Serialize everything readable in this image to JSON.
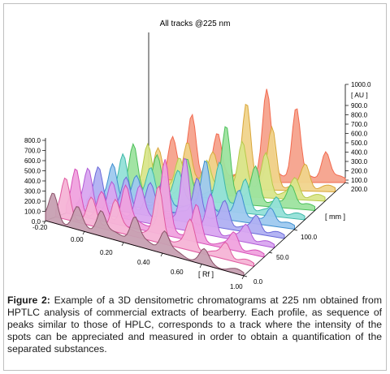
{
  "chart_data": {
    "type": "3d-densitogram",
    "title": "All tracks @225 nm",
    "left_axis": {
      "ticks": [
        "800.0",
        "700.0",
        "600.0",
        "500.0",
        "400.0",
        "300.0",
        "200.0",
        "100.0",
        "0.0"
      ]
    },
    "right_axis": {
      "unit": "[ AU ]",
      "ticks": [
        "1000.0",
        "900.0",
        "800.0",
        "700.0",
        "600.0",
        "500.0",
        "400.0",
        "300.0",
        "200.0",
        "100.0"
      ]
    },
    "rf_axis": {
      "label": "[ Rf ]",
      "ticks": [
        "-0.20",
        "0.00",
        "0.20",
        "0.40",
        "0.60",
        "1.00"
      ]
    },
    "mm_axis": {
      "label": "[ mm ]",
      "ticks": [
        "200.0",
        "100.0",
        "50.0",
        "0.0"
      ]
    },
    "series": [
      {
        "color": "#f26a4f",
        "fill": "#f6a28c",
        "peaks": [
          [
            0.12,
            0.45
          ],
          [
            0.22,
            0.65
          ],
          [
            0.35,
            0.4
          ],
          [
            0.6,
            0.9
          ],
          [
            0.75,
            0.75
          ],
          [
            0.9,
            0.3
          ]
        ]
      },
      {
        "color": "#d9a63a",
        "fill": "#f0d48c",
        "peaks": [
          [
            0.1,
            0.4
          ],
          [
            0.25,
            0.45
          ],
          [
            0.38,
            0.3
          ],
          [
            0.55,
            0.85
          ],
          [
            0.68,
            0.6
          ],
          [
            0.85,
            0.25
          ]
        ]
      },
      {
        "color": "#b7c94a",
        "fill": "#d9e68c",
        "peaks": [
          [
            0.1,
            0.5
          ],
          [
            0.26,
            0.35
          ],
          [
            0.4,
            0.3
          ],
          [
            0.58,
            0.55
          ],
          [
            0.7,
            0.45
          ],
          [
            0.85,
            0.2
          ]
        ]
      },
      {
        "color": "#4cbf5a",
        "fill": "#9de39f",
        "peaks": [
          [
            0.08,
            0.55
          ],
          [
            0.2,
            0.4
          ],
          [
            0.35,
            0.35
          ],
          [
            0.55,
            0.8
          ],
          [
            0.7,
            0.4
          ],
          [
            0.88,
            0.25
          ]
        ]
      },
      {
        "color": "#3fb8a8",
        "fill": "#94e0d8",
        "peaks": [
          [
            0.08,
            0.5
          ],
          [
            0.22,
            0.35
          ],
          [
            0.36,
            0.3
          ],
          [
            0.57,
            0.5
          ],
          [
            0.7,
            0.35
          ],
          [
            0.86,
            0.2
          ]
        ]
      },
      {
        "color": "#3f8fcf",
        "fill": "#9ec9ef",
        "peaks": [
          [
            0.08,
            0.45
          ],
          [
            0.2,
            0.3
          ],
          [
            0.34,
            0.3
          ],
          [
            0.55,
            0.6
          ],
          [
            0.72,
            0.35
          ],
          [
            0.88,
            0.2
          ]
        ]
      },
      {
        "color": "#6a6ad8",
        "fill": "#b0b0f2",
        "peaks": [
          [
            0.06,
            0.45
          ],
          [
            0.2,
            0.35
          ],
          [
            0.32,
            0.3
          ],
          [
            0.56,
            0.5
          ],
          [
            0.7,
            0.3
          ],
          [
            0.86,
            0.2
          ]
        ]
      },
      {
        "color": "#b05cd6",
        "fill": "#d9a6f0",
        "peaks": [
          [
            0.06,
            0.5
          ],
          [
            0.18,
            0.35
          ],
          [
            0.32,
            0.35
          ],
          [
            0.55,
            0.85
          ],
          [
            0.68,
            0.45
          ],
          [
            0.86,
            0.2
          ]
        ]
      },
      {
        "color": "#d64fb8",
        "fill": "#f0a2de",
        "peaks": [
          [
            0.05,
            0.55
          ],
          [
            0.18,
            0.3
          ],
          [
            0.3,
            0.45
          ],
          [
            0.5,
            0.85
          ],
          [
            0.66,
            0.4
          ],
          [
            0.85,
            0.2
          ]
        ]
      },
      {
        "color": "#e05aa0",
        "fill": "#f5b4d6",
        "peaks": [
          [
            0.05,
            0.5
          ],
          [
            0.18,
            0.3
          ],
          [
            0.3,
            0.35
          ],
          [
            0.52,
            0.65
          ],
          [
            0.68,
            0.35
          ],
          [
            0.86,
            0.2
          ]
        ]
      },
      {
        "color": "#8a5068",
        "fill": "#c7a0b2",
        "peaks": [
          [
            0.04,
            0.35
          ],
          [
            0.16,
            0.25
          ],
          [
            0.28,
            0.3
          ],
          [
            0.45,
            0.3
          ],
          [
            0.6,
            0.25
          ],
          [
            0.8,
            0.15
          ]
        ]
      }
    ]
  },
  "caption": {
    "label": "Figure 2:",
    "text": " Example of a 3D densitometric chromatograms at 225 nm obtained from HPTLC analysis of commercial extracts of bearberry. Each profile, as sequence of peaks similar to those of HPLC, corresponds to a track where the intensity of the spots can be appreciated and measured in order to obtain a quantification of the separated substances."
  }
}
